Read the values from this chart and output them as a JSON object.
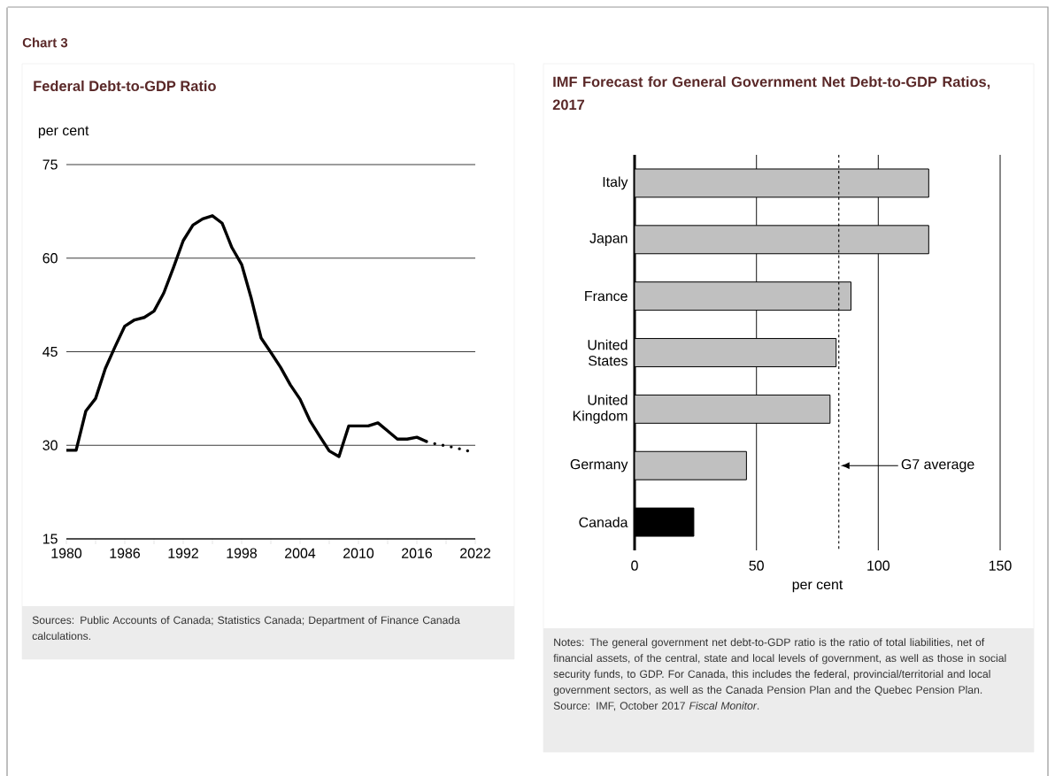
{
  "chart_data": [
    {
      "type": "line",
      "title": "Federal Debt-to-GDP Ratio",
      "ylabel": "per cent",
      "xlim": [
        1980,
        2022
      ],
      "ylim": [
        15,
        75
      ],
      "xticks": [
        1980,
        {
          "value": 1983,
          "label": null
        },
        1986,
        {
          "value": 1989,
          "label": null
        },
        1992,
        {
          "value": 1995,
          "label": null
        },
        1998,
        {
          "value": 2001,
          "label": null
        },
        2004,
        {
          "value": 2007,
          "label": null
        },
        2010,
        {
          "value": 2013,
          "label": null
        },
        2016,
        {
          "value": 2019,
          "label": null
        },
        2022
      ],
      "yticks": [
        15,
        30,
        45,
        60,
        75
      ],
      "grid": "y",
      "series": [
        {
          "color": "#000000",
          "line_style": "solid",
          "x": [
            1980,
            1981,
            1982,
            1983,
            1984,
            1985,
            1986,
            1987,
            1988,
            1989,
            1990,
            1991,
            1992,
            1993,
            1994,
            1995,
            1996,
            1997,
            1998,
            1999,
            2000,
            2001,
            2002,
            2003,
            2004,
            2005,
            2006,
            2007,
            2008,
            2009,
            2010,
            2011,
            2012,
            2013,
            2014,
            2015,
            2016,
            2017
          ],
          "values": [
            29.2,
            29.2,
            35.5,
            37.5,
            42.3,
            45.8,
            49.1,
            50.1,
            50.5,
            51.5,
            54.4,
            58.5,
            62.8,
            65.3,
            66.3,
            66.8,
            65.6,
            61.7,
            59.0,
            53.5,
            47.2,
            44.9,
            42.5,
            39.7,
            37.4,
            34.0,
            31.5,
            29.1,
            28.2,
            33.1,
            33.1,
            33.1,
            33.6,
            32.3,
            31.0,
            31.0,
            31.3,
            30.6
          ]
        },
        {
          "color": "#000000",
          "line_style": "dotted",
          "x": [
            2017,
            2018,
            2019,
            2020,
            2021,
            2022
          ],
          "values": [
            30.6,
            30.2,
            29.9,
            29.6,
            29.2,
            28.8
          ]
        }
      ],
      "annotations": [
        "Chart 3",
        "Sources: Public Accounts of Canada; Statistics Canada; Department of Finance Canada calculations."
      ]
    },
    {
      "type": "bar",
      "orientation": "horizontal",
      "title": "IMF Forecast for General Government Net Debt-to-GDP Ratios, 2017",
      "xlabel": "per cent",
      "categories": [
        "Italy",
        "Japan",
        "France",
        "United States",
        "United Kingdom",
        "Germany",
        "Canada"
      ],
      "values": [
        120.7,
        120.7,
        88.8,
        82.7,
        80.2,
        45.9,
        24.3
      ],
      "colors": [
        "#c0c0c0",
        "#c0c0c0",
        "#c0c0c0",
        "#c0c0c0",
        "#c0c0c0",
        "#c0c0c0",
        "#000000"
      ],
      "xlim": [
        0,
        150
      ],
      "xticks": [
        0,
        50,
        100,
        150
      ],
      "grid": "x",
      "ref_lines": [
        {
          "axis": "x",
          "value": 83.8,
          "label": "G7 average",
          "line_style": "dashed"
        }
      ],
      "annotations": [
        "Notes: The general government net debt-to-GDP ratio is the ratio of total liabilities, net of financial assets, of the central, state and local levels of government, as well as those in social security funds, to GDP. For Canada, this includes the federal, provincial/territorial and local government sectors, as well as the Canada Pension Plan and the Quebec Pension Plan.",
        "Source: IMF, October 2017 *Fiscal Monitor*."
      ]
    }
  ]
}
